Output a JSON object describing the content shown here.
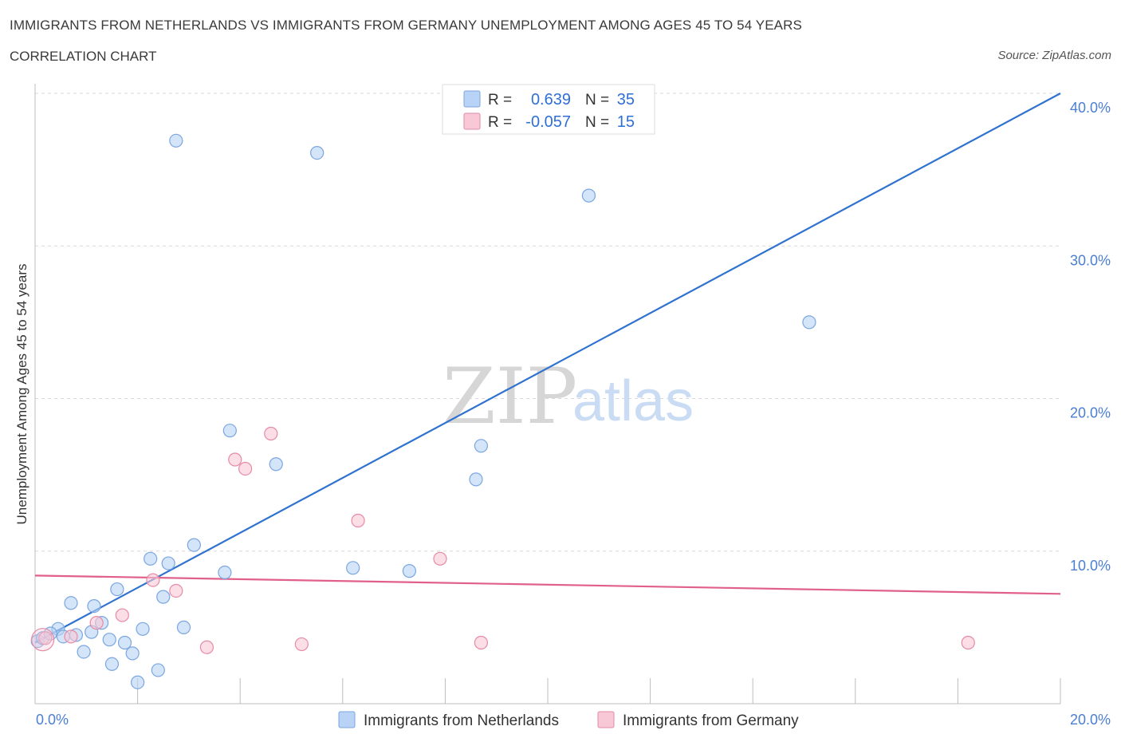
{
  "header": {
    "title": "IMMIGRANTS FROM NETHERLANDS VS IMMIGRANTS FROM GERMANY UNEMPLOYMENT AMONG AGES 45 TO 54 YEARS",
    "subtitle": "CORRELATION CHART",
    "source": "Source: ZipAtlas.com"
  },
  "watermark": {
    "zip": "ZIP",
    "atlas": "atlas"
  },
  "stats": {
    "r_label": "R =",
    "n_label": "N =",
    "netherlands": {
      "r": "0.639",
      "n": "35"
    },
    "germany": {
      "r": "-0.057",
      "n": "15"
    }
  },
  "colors": {
    "netherlands_fill": "#b8d3f5",
    "netherlands_stroke": "#7aa6e0",
    "netherlands_line": "#2f72d0",
    "germany_fill": "#f8c8d6",
    "germany_stroke": "#e68aa6",
    "germany_line": "#e0608a",
    "tick_text": "#4a7fd4",
    "grid": "#d9d9d9"
  },
  "chart_data": {
    "type": "scatter",
    "title": "IMMIGRANTS FROM NETHERLANDS VS IMMIGRANTS FROM GERMANY UNEMPLOYMENT AMONG AGES 45 TO 54 YEARS",
    "xlabel": "",
    "ylabel": "Unemployment Among Ages 45 to 54 years",
    "xlim": [
      0,
      20
    ],
    "ylim": [
      0,
      40
    ],
    "x_tick_labels": [
      "0.0%",
      "20.0%"
    ],
    "y_ticks": [
      10,
      20,
      30,
      40
    ],
    "y_tick_labels": [
      "10.0%",
      "20.0%",
      "30.0%",
      "40.0%"
    ],
    "grid": true,
    "legend": "bottom-center",
    "series": [
      {
        "name": "Immigrants from Netherlands",
        "points": [
          [
            0.05,
            4.1
          ],
          [
            0.15,
            4.3
          ],
          [
            0.45,
            4.9
          ],
          [
            0.7,
            6.6
          ],
          [
            0.8,
            4.5
          ],
          [
            0.95,
            3.4
          ],
          [
            1.1,
            4.7
          ],
          [
            1.15,
            6.4
          ],
          [
            1.3,
            5.3
          ],
          [
            1.45,
            4.2
          ],
          [
            1.5,
            2.6
          ],
          [
            1.6,
            7.5
          ],
          [
            1.75,
            4.0
          ],
          [
            1.9,
            3.3
          ],
          [
            2.0,
            1.4
          ],
          [
            2.1,
            4.9
          ],
          [
            2.25,
            9.5
          ],
          [
            2.4,
            2.2
          ],
          [
            2.5,
            7.0
          ],
          [
            2.6,
            9.2
          ],
          [
            2.75,
            36.9
          ],
          [
            2.9,
            5.0
          ],
          [
            3.1,
            10.4
          ],
          [
            3.7,
            8.6
          ],
          [
            3.8,
            17.9
          ],
          [
            4.7,
            15.7
          ],
          [
            5.5,
            36.1
          ],
          [
            6.2,
            8.9
          ],
          [
            7.3,
            8.7
          ],
          [
            8.6,
            14.7
          ],
          [
            8.7,
            16.9
          ],
          [
            10.8,
            33.3
          ],
          [
            15.1,
            25.0
          ],
          [
            0.3,
            4.6
          ],
          [
            0.55,
            4.4
          ]
        ],
        "trend": {
          "x": [
            0,
            20
          ],
          "y": [
            4.0,
            40.0
          ]
        }
      },
      {
        "name": "Immigrants from Germany",
        "points": [
          [
            0.2,
            4.3
          ],
          [
            0.7,
            4.4
          ],
          [
            1.2,
            5.3
          ],
          [
            1.7,
            5.8
          ],
          [
            2.3,
            8.1
          ],
          [
            2.75,
            7.4
          ],
          [
            3.35,
            3.7
          ],
          [
            3.9,
            16.0
          ],
          [
            4.1,
            15.4
          ],
          [
            4.6,
            17.7
          ],
          [
            5.2,
            3.9
          ],
          [
            6.3,
            12.0
          ],
          [
            7.9,
            9.5
          ],
          [
            8.7,
            4.0
          ],
          [
            18.2,
            4.0
          ]
        ],
        "trend": {
          "x": [
            0,
            20
          ],
          "y": [
            8.4,
            7.2
          ]
        }
      }
    ]
  }
}
